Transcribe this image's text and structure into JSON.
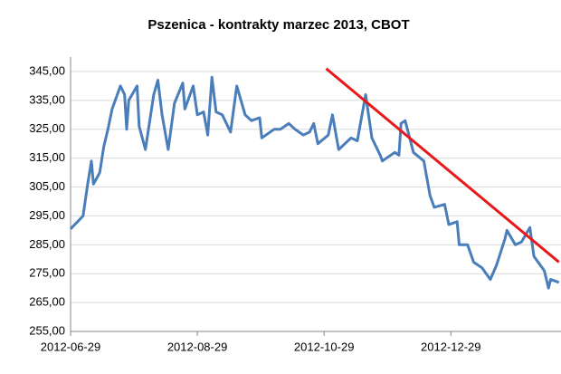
{
  "chart_data": {
    "type": "line",
    "title": "Pszenica - kontrakty marzec 2013, CBOT",
    "xlim": [
      "2012-06-29",
      "2013-02-20"
    ],
    "xticks": [
      "2012-06-29",
      "2012-08-29",
      "2012-10-29",
      "2012-12-29"
    ],
    "ylim": [
      255,
      350
    ],
    "yticks": [
      {
        "value": 255,
        "label": "255,00"
      },
      {
        "value": 265,
        "label": "265,00"
      },
      {
        "value": 275,
        "label": "275,00"
      },
      {
        "value": 285,
        "label": "285,00"
      },
      {
        "value": 295,
        "label": "295,00"
      },
      {
        "value": 305,
        "label": "305,00"
      },
      {
        "value": 315,
        "label": "315,00"
      },
      {
        "value": 325,
        "label": "325,00"
      },
      {
        "value": 335,
        "label": "335,00"
      },
      {
        "value": 345,
        "label": "345,00"
      }
    ],
    "grid": true,
    "x": [
      "2012-06-29",
      "2012-07-05",
      "2012-07-07",
      "2012-07-09",
      "2012-07-10",
      "2012-07-13",
      "2012-07-15",
      "2012-07-17",
      "2012-07-19",
      "2012-07-23",
      "2012-07-25",
      "2012-07-26",
      "2012-07-27",
      "2012-07-31",
      "2012-08-01",
      "2012-08-04",
      "2012-08-08",
      "2012-08-10",
      "2012-08-12",
      "2012-08-15",
      "2012-08-18",
      "2012-08-22",
      "2012-08-23",
      "2012-08-27",
      "2012-08-29",
      "2012-09-01",
      "2012-09-03",
      "2012-09-05",
      "2012-09-07",
      "2012-09-10",
      "2012-09-14",
      "2012-09-17",
      "2012-09-21",
      "2012-09-24",
      "2012-09-28",
      "2012-09-29",
      "2012-10-05",
      "2012-10-08",
      "2012-10-12",
      "2012-10-15",
      "2012-10-19",
      "2012-10-22",
      "2012-10-24",
      "2012-10-26",
      "2012-10-31",
      "2012-11-02",
      "2012-11-05",
      "2012-11-11",
      "2012-11-14",
      "2012-11-18",
      "2012-11-21",
      "2012-11-25",
      "2012-11-26",
      "2012-12-02",
      "2012-12-04",
      "2012-12-05",
      "2012-12-07",
      "2012-12-11",
      "2012-12-16",
      "2012-12-19",
      "2012-12-21",
      "2012-12-26",
      "2012-12-28",
      "2013-01-01",
      "2013-01-02",
      "2013-01-06",
      "2013-01-09",
      "2013-01-13",
      "2013-01-17",
      "2013-01-20",
      "2013-01-24",
      "2013-01-25",
      "2013-01-29",
      "2013-02-01",
      "2013-02-05",
      "2013-02-07",
      "2013-02-12",
      "2013-02-14",
      "2013-02-15",
      "2013-02-19"
    ],
    "series": [
      {
        "color": "#4a7ebb",
        "values": [
          290.5,
          295,
          305,
          314,
          306,
          310,
          319,
          325,
          332,
          340,
          337,
          325,
          335,
          340,
          326,
          318,
          337,
          342,
          330,
          318,
          334,
          341,
          332,
          340,
          330,
          331,
          323,
          343,
          331,
          330,
          324,
          340,
          330,
          328,
          329,
          322,
          325,
          325,
          327,
          325,
          323,
          324,
          327,
          320,
          323,
          330,
          318,
          322,
          321,
          337,
          322,
          316,
          314,
          317,
          316,
          327,
          328,
          317,
          314,
          302,
          298,
          299,
          292,
          293,
          285,
          285,
          279,
          277,
          273,
          278,
          287,
          290,
          285,
          286,
          291,
          281,
          276,
          270,
          273,
          272
        ]
      }
    ],
    "trendline": {
      "color": "#e8191c",
      "x": [
        "2012-10-30",
        "2013-02-19"
      ],
      "values": [
        346,
        279
      ]
    }
  }
}
